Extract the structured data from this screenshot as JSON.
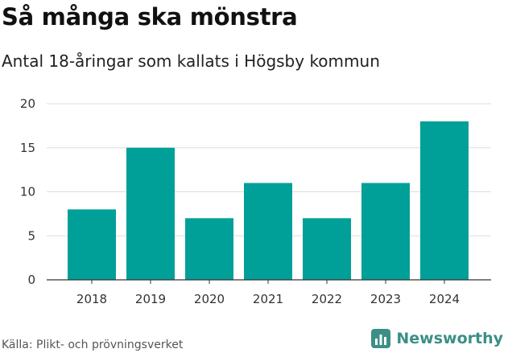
{
  "title": "Så många ska mönstra",
  "subtitle": "Antal 18-åringar som kallats i Högsby kommun",
  "source": "Källa: Plikt- och prövningsverket",
  "brand": {
    "name": "Newsworthy",
    "icon": "bar-chart-logo-icon",
    "color": "#3b8f86"
  },
  "colors": {
    "bar": "#00a098",
    "grid": "#dddddd",
    "axis": "#333333"
  },
  "chart_data": {
    "type": "bar",
    "categories": [
      "2018",
      "2019",
      "2020",
      "2021",
      "2022",
      "2023",
      "2024"
    ],
    "values": [
      8,
      15,
      7,
      11,
      7,
      11,
      18
    ],
    "ylim": [
      0,
      20
    ],
    "yticks": [
      0,
      5,
      10,
      15,
      20
    ],
    "grid": true,
    "title": "",
    "xlabel": "",
    "ylabel": ""
  }
}
